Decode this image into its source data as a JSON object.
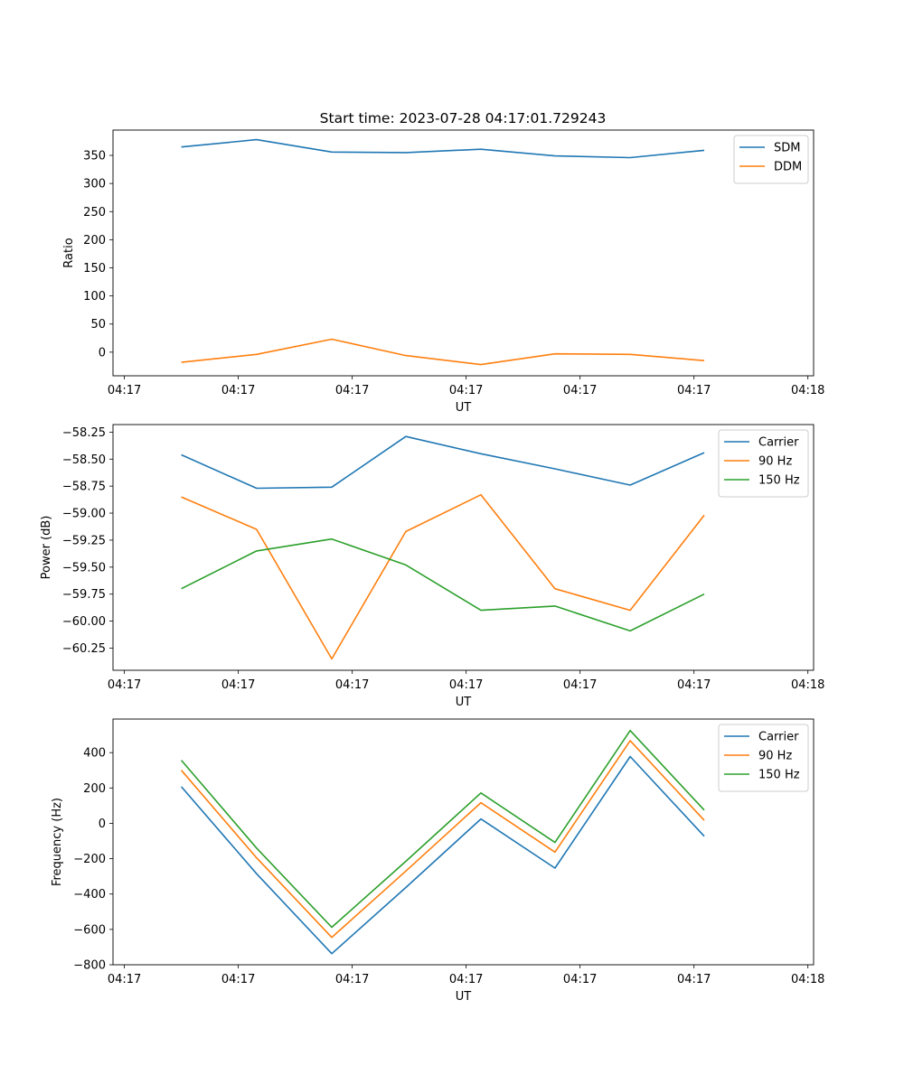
{
  "figure_title": "Start time: 2023-07-28 04:17:01.729243",
  "chart_data": [
    {
      "type": "line",
      "title": "Start time: 2023-07-28 04:17:01.729243",
      "xlabel": "UT",
      "ylabel": "Ratio",
      "x_unit": "seconds after 04:17:00",
      "xlim": [
        1.0,
        62.5
      ],
      "x_ticks": [
        {
          "value": 2,
          "label": "04:17"
        },
        {
          "value": 12,
          "label": "04:17"
        },
        {
          "value": 22,
          "label": "04:17"
        },
        {
          "value": 32,
          "label": "04:17"
        },
        {
          "value": 42,
          "label": "04:17"
        },
        {
          "value": 52,
          "label": "04:17"
        },
        {
          "value": 62,
          "label": "04:18"
        }
      ],
      "x": [
        7.0,
        13.6,
        20.2,
        26.7,
        33.3,
        39.8,
        46.4,
        52.9
      ],
      "ylim": [
        -42,
        395
      ],
      "y_ticks": [
        0,
        50,
        100,
        150,
        200,
        250,
        300,
        350
      ],
      "legend_position": "top-right",
      "series": [
        {
          "name": "SDM",
          "color": "#1f77b4",
          "values": [
            365,
            378,
            356,
            355,
            361,
            349,
            346,
            359
          ]
        },
        {
          "name": "DDM",
          "color": "#ff7f0e",
          "values": [
            -18,
            -4,
            23,
            -6,
            -22,
            -3,
            -4,
            -15
          ]
        }
      ]
    },
    {
      "type": "line",
      "xlabel": "UT",
      "ylabel": "Power (dB)",
      "x_unit": "seconds after 04:17:00",
      "xlim": [
        1.0,
        62.5
      ],
      "x_ticks": [
        {
          "value": 2,
          "label": "04:17"
        },
        {
          "value": 12,
          "label": "04:17"
        },
        {
          "value": 22,
          "label": "04:17"
        },
        {
          "value": 32,
          "label": "04:17"
        },
        {
          "value": 42,
          "label": "04:17"
        },
        {
          "value": 52,
          "label": "04:17"
        },
        {
          "value": 62,
          "label": "04:18"
        }
      ],
      "x": [
        7.0,
        13.6,
        20.2,
        26.7,
        33.3,
        39.8,
        46.4,
        52.9
      ],
      "ylim": [
        -60.455,
        -58.18
      ],
      "y_ticks": [
        {
          "value": -60.25,
          "label": "−60.25"
        },
        {
          "value": -60.0,
          "label": "−60.00"
        },
        {
          "value": -59.75,
          "label": "−59.75"
        },
        {
          "value": -59.5,
          "label": "−59.50"
        },
        {
          "value": -59.25,
          "label": "−59.25"
        },
        {
          "value": -59.0,
          "label": "−59.00"
        },
        {
          "value": -58.75,
          "label": "−58.75"
        },
        {
          "value": -58.5,
          "label": "−58.50"
        },
        {
          "value": -58.25,
          "label": "−58.25"
        }
      ],
      "legend_position": "top-right",
      "series": [
        {
          "name": "Carrier",
          "color": "#1f77b4",
          "values": [
            -58.46,
            -58.77,
            -58.76,
            -58.29,
            -58.45,
            -58.59,
            -58.74,
            -58.44
          ]
        },
        {
          "name": "90 Hz",
          "color": "#ff7f0e",
          "values": [
            -58.85,
            -59.15,
            -60.35,
            -59.17,
            -58.83,
            -59.7,
            -59.9,
            -59.02
          ]
        },
        {
          "name": "150 Hz",
          "color": "#2ca02c",
          "values": [
            -59.7,
            -59.35,
            -59.24,
            -59.48,
            -59.9,
            -59.86,
            -60.09,
            -59.75
          ]
        }
      ]
    },
    {
      "type": "line",
      "xlabel": "UT",
      "ylabel": "Frequency (Hz)",
      "x_unit": "seconds after 04:17:00",
      "xlim": [
        1.0,
        62.5
      ],
      "x_ticks": [
        {
          "value": 2,
          "label": "04:17"
        },
        {
          "value": 12,
          "label": "04:17"
        },
        {
          "value": 22,
          "label": "04:17"
        },
        {
          "value": 32,
          "label": "04:17"
        },
        {
          "value": 42,
          "label": "04:17"
        },
        {
          "value": 52,
          "label": "04:17"
        },
        {
          "value": 62,
          "label": "04:18"
        }
      ],
      "x": [
        7.0,
        13.6,
        20.2,
        26.7,
        33.3,
        39.8,
        46.4,
        52.9
      ],
      "ylim": [
        -800,
        590
      ],
      "y_ticks": [
        {
          "value": -800,
          "label": "−800"
        },
        {
          "value": -600,
          "label": "−600"
        },
        {
          "value": -400,
          "label": "−400"
        },
        {
          "value": -200,
          "label": "−200"
        },
        {
          "value": 0,
          "label": "0"
        },
        {
          "value": 200,
          "label": "200"
        },
        {
          "value": 400,
          "label": "400"
        }
      ],
      "legend_position": "top-right",
      "series": [
        {
          "name": "Carrier",
          "color": "#1f77b4",
          "values": [
            207,
            -285,
            -737,
            -363,
            25,
            -253,
            378,
            -73
          ]
        },
        {
          "name": "90 Hz",
          "color": "#ff7f0e",
          "values": [
            300,
            -195,
            -645,
            -270,
            117,
            -163,
            468,
            17
          ]
        },
        {
          "name": "150 Hz",
          "color": "#2ca02c",
          "values": [
            357,
            -140,
            -588,
            -215,
            172,
            -108,
            525,
            75
          ]
        }
      ]
    }
  ]
}
